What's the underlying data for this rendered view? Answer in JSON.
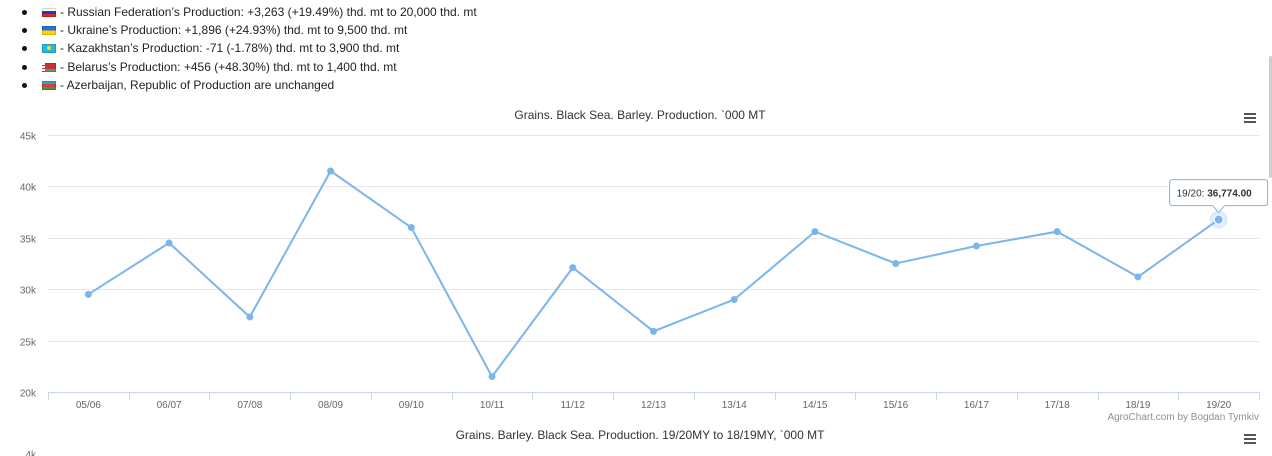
{
  "summary": {
    "items": [
      {
        "flag": "russia-flag-icon",
        "text": "- Russian Federation’s Production: +3,263 (+19.49%) thd. mt to 20,000 thd. mt"
      },
      {
        "flag": "ukraine-flag-icon",
        "text": "- Ukraine’s Production: +1,896 (+24.93%) thd. mt to 9,500 thd. mt"
      },
      {
        "flag": "kazakhstan-flag-icon",
        "text": "- Kazakhstan’s Production: -71 (-1.78%) thd. mt to 3,900 thd. mt"
      },
      {
        "flag": "belarus-flag-icon",
        "text": "- Belarus’s Production: +456 (+48.30%) thd. mt to 1,400 thd. mt"
      },
      {
        "flag": "azerbaijan-flag-icon",
        "text": "- Azerbaijan, Republic of Production are unchanged"
      }
    ]
  },
  "chart_data": [
    {
      "type": "line",
      "title": "Grains. Black Sea. Barley. Production. `000 MT",
      "categories": [
        "05/06",
        "06/07",
        "07/08",
        "08/09",
        "09/10",
        "10/11",
        "11/12",
        "12/13",
        "13/14",
        "14/15",
        "15/16",
        "16/17",
        "17/18",
        "18/19",
        "19/20"
      ],
      "series": [
        {
          "values": [
            29500,
            34500,
            27300,
            41500,
            36000,
            21500,
            32100,
            25900,
            29000,
            35600,
            32500,
            34200,
            35600,
            31200,
            36774
          ]
        }
      ],
      "ylim": [
        20000,
        45000
      ],
      "yticks": [
        20000,
        25000,
        30000,
        35000,
        40000,
        45000
      ],
      "ytick_labels": [
        "20k",
        "25k",
        "30k",
        "35k",
        "40k",
        "45k"
      ],
      "grid": true,
      "color": "#7cb5ec",
      "tooltip": {
        "category": "19/20",
        "label": "19/20: ",
        "value": "36,774.00"
      },
      "credits": "AgroChart.com by Bogdan Tymkiv"
    },
    {
      "type": "line",
      "title": "Grains. Barley. Black Sea. Production. 19/20MY to 18/19MY, `000 MT",
      "ytick_labels": [
        "4k"
      ]
    }
  ],
  "menu_icon": "hamburger-menu-icon"
}
